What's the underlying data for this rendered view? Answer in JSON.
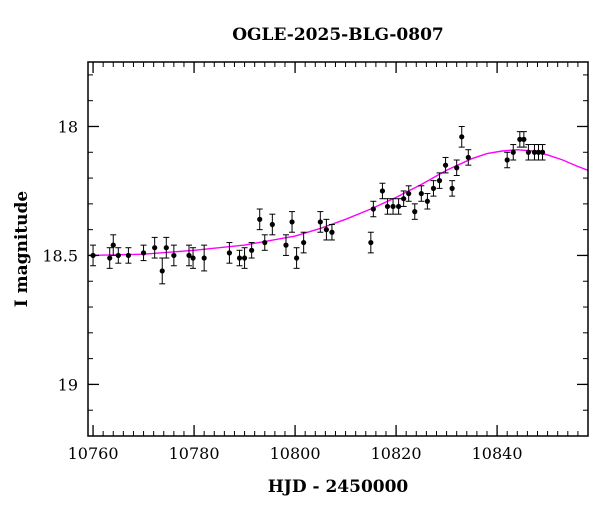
{
  "chart_data": {
    "type": "scatter",
    "title": "OGLE-2025-BLG-0807",
    "xlabel": "HJD - 2450000",
    "ylabel": "I magnitude",
    "xlim": [
      10759,
      10858
    ],
    "ylim": [
      19.2,
      17.75
    ],
    "y_inverted": true,
    "x_ticks": [
      10760,
      10780,
      10800,
      10820,
      10840
    ],
    "x_tick_labels": [
      "10760",
      "10780",
      "10800",
      "10820",
      "10840"
    ],
    "y_ticks": [
      18,
      18.5,
      19
    ],
    "y_tick_labels": [
      "18",
      "18.5",
      "19"
    ],
    "x_minor_step": 2,
    "y_minor_step": 0.1,
    "grid": false,
    "legend": "none",
    "point_color": "#000000",
    "model_color": "#ff00ff",
    "series": [
      {
        "type": "errorbar",
        "x": [
          10760,
          10763.3,
          10764,
          10765,
          10767,
          10770,
          10772.2,
          10773.7,
          10774.5,
          10776,
          10779,
          10779.8,
          10782,
          10787,
          10789,
          10790,
          10791.4,
          10793,
          10794,
          10795.5,
          10798.2,
          10799.4,
          10800.3,
          10801.7,
          10805,
          10806.2,
          10807.3,
          10815,
          10815.5,
          10817.3,
          10818.3,
          10819.4,
          10820.5,
          10821.5,
          10822.5,
          10823.7,
          10825,
          10826.2,
          10827.4,
          10828.6,
          10829.8,
          10831.1,
          10832,
          10833,
          10834.3,
          10842,
          10843.2,
          10844.5,
          10845.3,
          10846.2,
          10847.4,
          10848.2,
          10849
        ],
        "y": [
          18.5,
          18.51,
          18.46,
          18.5,
          18.5,
          18.49,
          18.47,
          18.56,
          18.47,
          18.5,
          18.5,
          18.51,
          18.51,
          18.49,
          18.51,
          18.51,
          18.48,
          18.36,
          18.45,
          18.38,
          18.46,
          18.37,
          18.51,
          18.45,
          18.37,
          18.4,
          18.41,
          18.45,
          18.32,
          18.25,
          18.31,
          18.31,
          18.31,
          18.28,
          18.26,
          18.33,
          18.26,
          18.29,
          18.24,
          18.21,
          18.15,
          18.24,
          18.16,
          18.04,
          18.12,
          18.13,
          18.1,
          18.05,
          18.05,
          18.1,
          18.1,
          18.1,
          18.1
        ],
        "yerr": [
          0.04,
          0.04,
          0.04,
          0.03,
          0.03,
          0.03,
          0.04,
          0.05,
          0.04,
          0.04,
          0.04,
          0.04,
          0.05,
          0.04,
          0.03,
          0.04,
          0.03,
          0.04,
          0.03,
          0.04,
          0.04,
          0.04,
          0.04,
          0.04,
          0.04,
          0.04,
          0.03,
          0.04,
          0.03,
          0.03,
          0.03,
          0.03,
          0.03,
          0.03,
          0.03,
          0.03,
          0.03,
          0.03,
          0.03,
          0.03,
          0.03,
          0.03,
          0.03,
          0.04,
          0.03,
          0.03,
          0.03,
          0.03,
          0.03,
          0.03,
          0.03,
          0.03,
          0.03
        ]
      },
      {
        "type": "line",
        "x": [
          10759,
          10770,
          10780,
          10790,
          10800,
          10805,
          10810,
          10815,
          10820,
          10825,
          10830,
          10835,
          10838,
          10841,
          10844,
          10847,
          10850,
          10853,
          10856,
          10858
        ],
        "y": [
          18.5,
          18.495,
          18.48,
          18.46,
          18.425,
          18.395,
          18.36,
          18.32,
          18.275,
          18.225,
          18.17,
          18.125,
          18.105,
          18.095,
          18.09,
          18.095,
          18.11,
          18.13,
          18.155,
          18.17
        ]
      }
    ]
  }
}
